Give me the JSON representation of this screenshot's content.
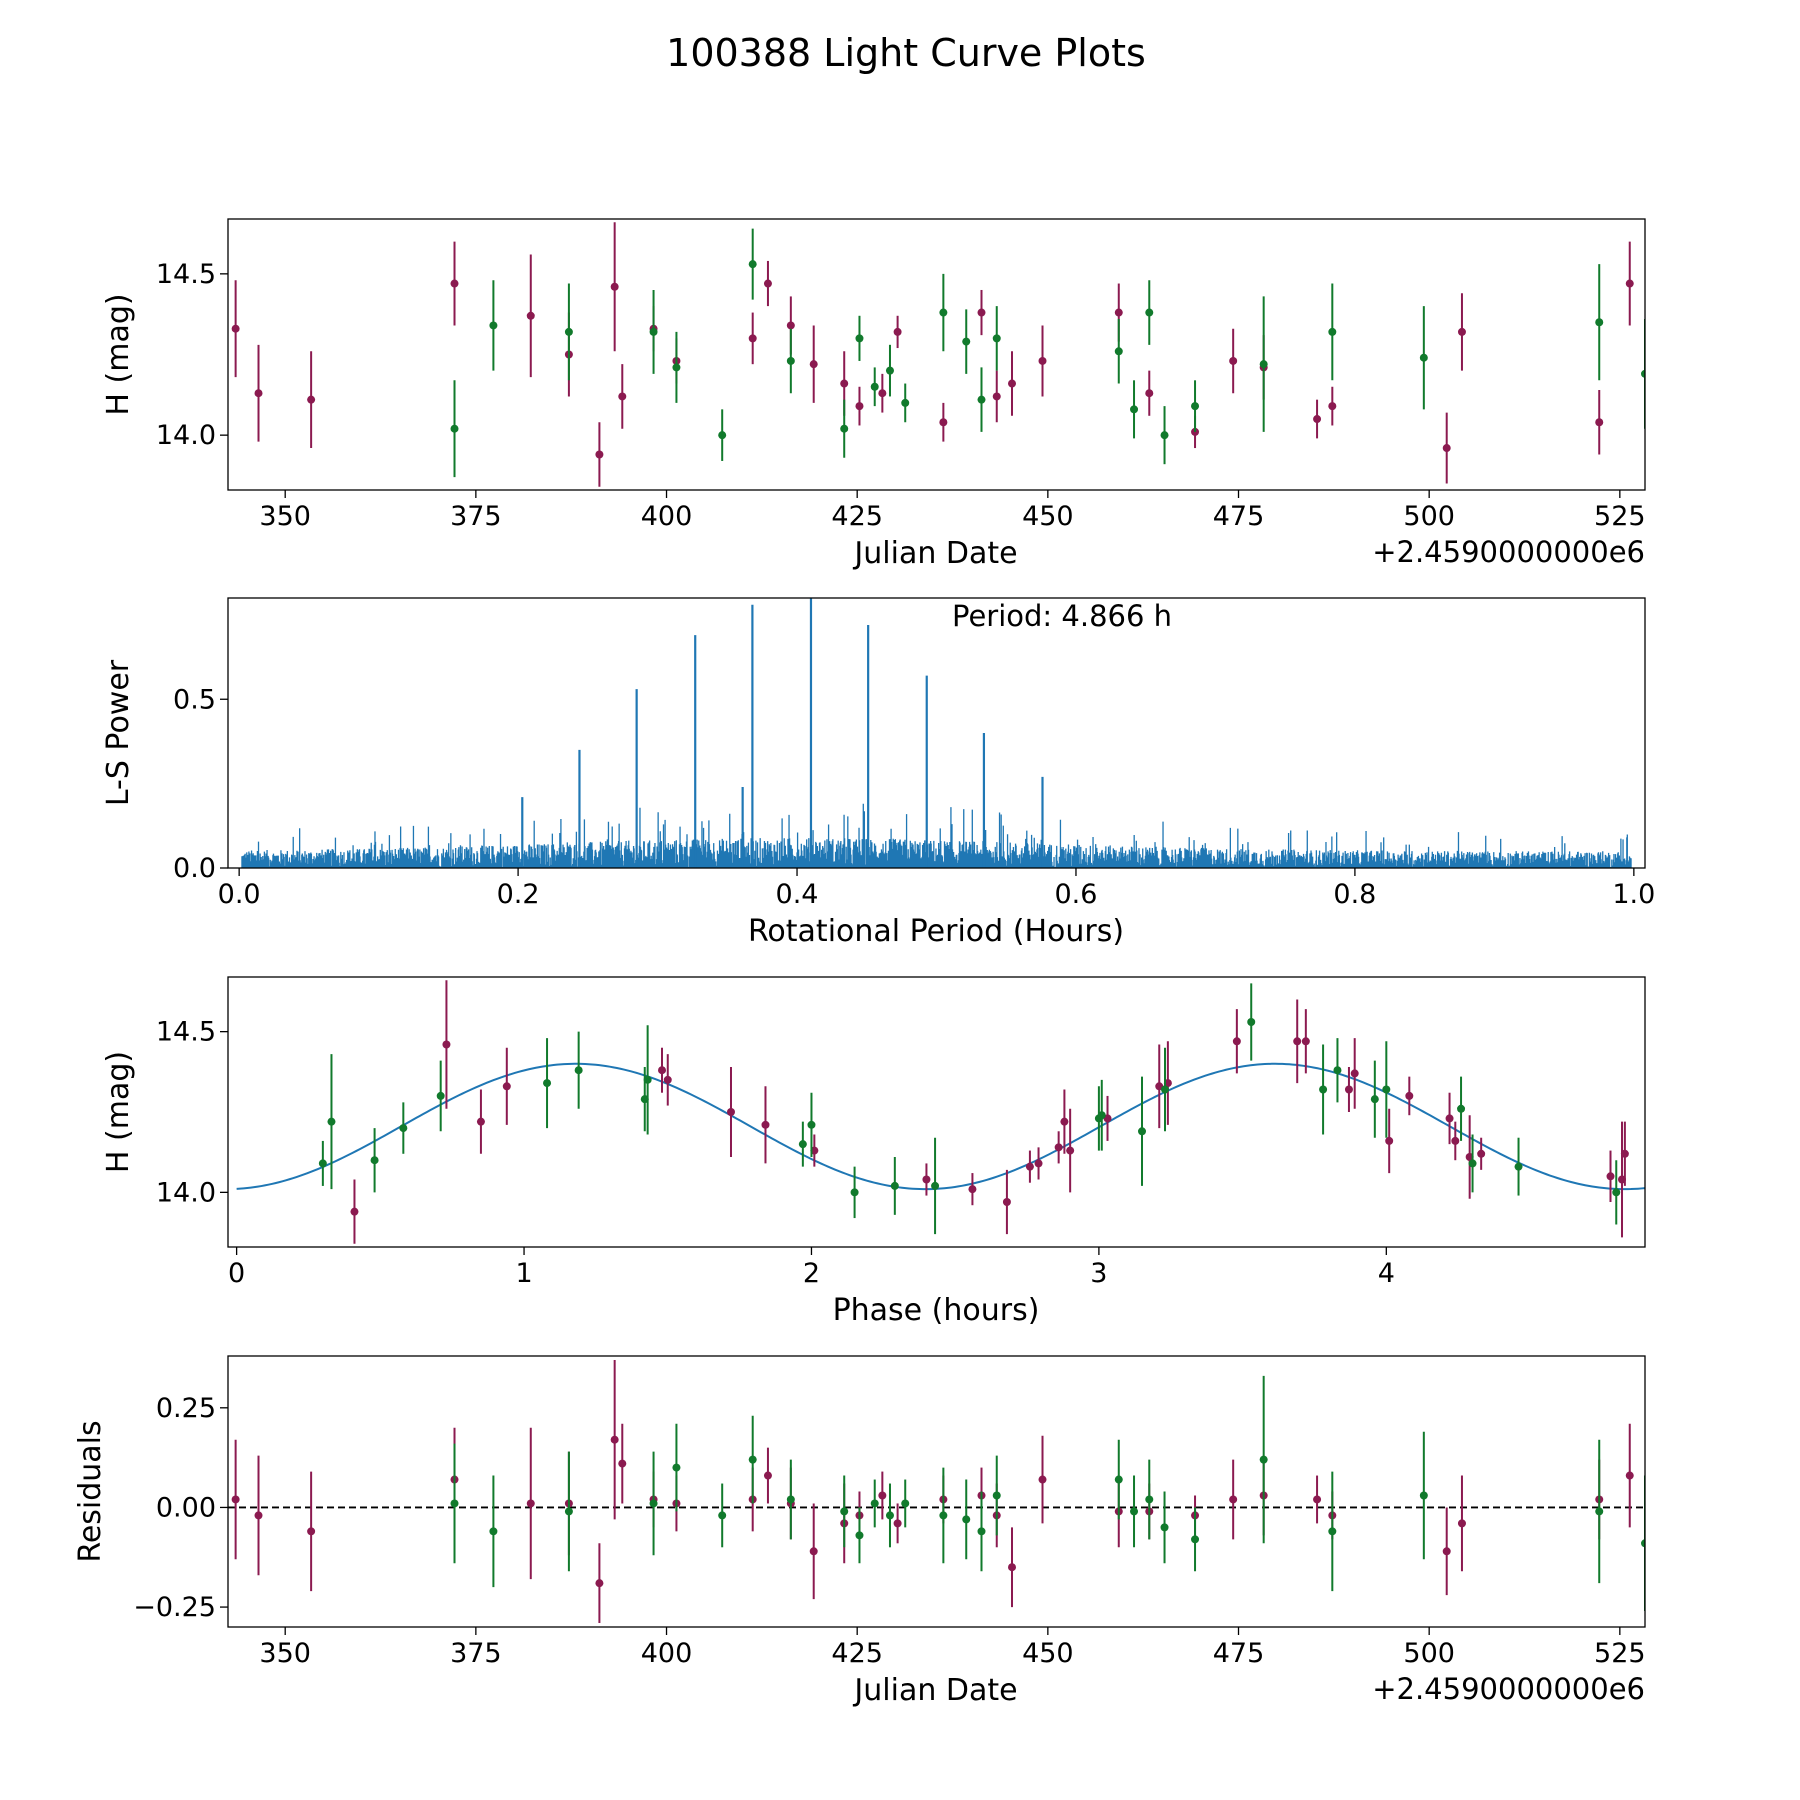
{
  "figure_title": "100388 Light Curve Plots",
  "colors": {
    "red": "#8b1a50",
    "green": "#117a2c",
    "blue": "#1f77b4",
    "black": "#000000"
  },
  "chart_data": [
    {
      "id": "p1",
      "type": "scatter",
      "title": "",
      "xlabel": "Julian Date",
      "ylabel": "H (mag)",
      "x_offset_label": "+2.4590000000e6",
      "xlim": [
        342.5,
        528.3
      ],
      "ylim": [
        13.83,
        14.67
      ],
      "xticks": [
        350,
        375,
        400,
        425,
        450,
        475,
        500,
        525
      ],
      "yticks": [
        14.0,
        14.5
      ],
      "ytick_labels": [
        "14.0",
        "14.5"
      ],
      "series": [
        {
          "name": "red",
          "color": "#8b1a50",
          "x": [
            343.5,
            346.5,
            353.4,
            372.2,
            382.2,
            387.2,
            391.2,
            393.2,
            394.2,
            398.3,
            401.3,
            411.3,
            413.3,
            416.3,
            419.3,
            423.3,
            425.3,
            428.3,
            430.3,
            436.3,
            441.3,
            443.3,
            445.3,
            449.3,
            459.3,
            463.3,
            469.3,
            474.3,
            478.3,
            485.3,
            487.3,
            502.3,
            504.3,
            522.3,
            526.3
          ],
          "y": [
            14.33,
            14.13,
            14.11,
            14.47,
            14.37,
            14.25,
            13.94,
            14.46,
            14.12,
            14.33,
            14.23,
            14.3,
            14.47,
            14.34,
            14.22,
            14.16,
            14.09,
            14.13,
            14.32,
            14.04,
            14.38,
            14.12,
            14.16,
            14.23,
            14.38,
            14.13,
            14.01,
            14.23,
            14.21,
            14.05,
            14.09,
            13.96,
            14.32,
            14.04,
            14.47
          ],
          "err": [
            0.15,
            0.15,
            0.15,
            0.13,
            0.19,
            0.13,
            0.1,
            0.2,
            0.1,
            0.07,
            0.07,
            0.08,
            0.07,
            0.09,
            0.12,
            0.1,
            0.06,
            0.06,
            0.05,
            0.06,
            0.07,
            0.08,
            0.1,
            0.11,
            0.09,
            0.07,
            0.05,
            0.1,
            0.1,
            0.06,
            0.06,
            0.11,
            0.12,
            0.1,
            0.13
          ]
        },
        {
          "name": "green",
          "color": "#117a2c",
          "x": [
            372.2,
            377.3,
            387.2,
            398.3,
            401.3,
            407.3,
            411.3,
            416.3,
            423.3,
            425.3,
            427.3,
            429.3,
            431.3,
            436.3,
            439.3,
            441.3,
            443.3,
            459.3,
            461.3,
            463.3,
            465.3,
            469.3,
            478.3,
            487.3,
            499.3,
            522.3,
            528.3
          ],
          "y": [
            14.02,
            14.34,
            14.32,
            14.32,
            14.21,
            14.0,
            14.53,
            14.23,
            14.02,
            14.3,
            14.15,
            14.2,
            14.1,
            14.38,
            14.29,
            14.11,
            14.3,
            14.26,
            14.08,
            14.38,
            14.0,
            14.09,
            14.22,
            14.32,
            14.24,
            14.35,
            14.19
          ],
          "err": [
            0.15,
            0.14,
            0.15,
            0.13,
            0.11,
            0.08,
            0.11,
            0.1,
            0.09,
            0.07,
            0.06,
            0.08,
            0.06,
            0.12,
            0.1,
            0.1,
            0.1,
            0.1,
            0.09,
            0.1,
            0.09,
            0.08,
            0.21,
            0.15,
            0.16,
            0.18,
            0.17
          ]
        }
      ]
    },
    {
      "id": "p2",
      "type": "line",
      "title": "",
      "xlabel": "Rotational Period (Hours)",
      "ylabel": "L-S Power",
      "annotation": "Period: 4.866 h",
      "xlim": [
        -0.008,
        1.008
      ],
      "ylim": [
        0.0,
        0.8
      ],
      "xticks": [
        0.0,
        0.2,
        0.4,
        0.6,
        0.8,
        1.0
      ],
      "xtick_labels": [
        "0.0",
        "0.2",
        "0.4",
        "0.6",
        "0.8",
        "1.0"
      ],
      "yticks": [
        0.0,
        0.5
      ],
      "ytick_labels": [
        "0.0",
        "0.5"
      ],
      "noise_level": 0.1,
      "peaks": [
        {
          "x": 0.244,
          "y": 0.35
        },
        {
          "x": 0.285,
          "y": 0.53
        },
        {
          "x": 0.327,
          "y": 0.69
        },
        {
          "x": 0.368,
          "y": 0.78
        },
        {
          "x": 0.41,
          "y": 0.8
        },
        {
          "x": 0.451,
          "y": 0.72
        },
        {
          "x": 0.493,
          "y": 0.57
        },
        {
          "x": 0.534,
          "y": 0.4
        },
        {
          "x": 0.576,
          "y": 0.27
        },
        {
          "x": 0.203,
          "y": 0.21
        },
        {
          "x": 0.361,
          "y": 0.24
        }
      ]
    },
    {
      "id": "p3",
      "type": "scatter",
      "title": "",
      "xlabel": "Phase (hours)",
      "ylabel": "H (mag)",
      "xlim": [
        -0.03,
        4.9
      ],
      "ylim": [
        13.83,
        14.67
      ],
      "xticks": [
        0,
        1,
        2,
        3,
        4
      ],
      "yticks": [
        14.0,
        14.5
      ],
      "ytick_labels": [
        "14.0",
        "14.5"
      ],
      "model": {
        "type": "sine",
        "mean": 14.205,
        "amplitude": 0.195,
        "period": 2.433,
        "phase_of_max": 1.18
      },
      "series": [
        {
          "name": "red",
          "color": "#8b1a50",
          "x": [
            0.41,
            0.73,
            0.85,
            0.94,
            1.48,
            1.5,
            1.72,
            1.84,
            2.01,
            2.4,
            2.56,
            2.68,
            2.76,
            2.79,
            2.86,
            2.88,
            2.9,
            3.03,
            3.21,
            3.24,
            3.48,
            3.69,
            3.72,
            3.87,
            3.89,
            4.01,
            4.08,
            4.22,
            4.24,
            4.29,
            4.33,
            4.78,
            4.82,
            4.83
          ],
          "y": [
            13.94,
            14.46,
            14.22,
            14.33,
            14.38,
            14.35,
            14.25,
            14.21,
            14.13,
            14.04,
            14.01,
            13.97,
            14.08,
            14.09,
            14.14,
            14.22,
            14.13,
            14.23,
            14.33,
            14.34,
            14.47,
            14.47,
            14.47,
            14.32,
            14.37,
            14.16,
            14.3,
            14.23,
            14.16,
            14.11,
            14.12,
            14.05,
            14.04,
            14.12
          ],
          "err": [
            0.1,
            0.2,
            0.1,
            0.12,
            0.07,
            0.08,
            0.14,
            0.12,
            0.05,
            0.05,
            0.05,
            0.1,
            0.05,
            0.05,
            0.05,
            0.1,
            0.13,
            0.07,
            0.13,
            0.13,
            0.1,
            0.13,
            0.1,
            0.07,
            0.11,
            0.1,
            0.06,
            0.08,
            0.06,
            0.13,
            0.05,
            0.08,
            0.18,
            0.1
          ]
        },
        {
          "name": "green",
          "color": "#117a2c",
          "x": [
            0.3,
            0.33,
            0.48,
            0.58,
            0.71,
            1.08,
            1.19,
            1.42,
            1.43,
            1.97,
            2.0,
            2.15,
            2.29,
            2.43,
            3.0,
            3.01,
            3.15,
            3.23,
            3.53,
            3.78,
            3.83,
            3.96,
            4.0,
            4.26,
            4.3,
            4.46,
            4.8
          ],
          "y": [
            14.09,
            14.22,
            14.1,
            14.2,
            14.3,
            14.34,
            14.38,
            14.29,
            14.35,
            14.15,
            14.21,
            14.0,
            14.02,
            14.02,
            14.23,
            14.24,
            14.19,
            14.32,
            14.53,
            14.32,
            14.38,
            14.29,
            14.32,
            14.26,
            14.09,
            14.08,
            14.0
          ],
          "err": [
            0.07,
            0.21,
            0.1,
            0.08,
            0.11,
            0.14,
            0.12,
            0.1,
            0.17,
            0.07,
            0.1,
            0.08,
            0.09,
            0.15,
            0.1,
            0.11,
            0.17,
            0.13,
            0.12,
            0.14,
            0.1,
            0.12,
            0.15,
            0.1,
            0.09,
            0.09,
            0.1
          ]
        }
      ]
    },
    {
      "id": "p4",
      "type": "scatter",
      "title": "",
      "xlabel": "Julian Date",
      "ylabel": "Residuals",
      "x_offset_label": "+2.4590000000e6",
      "xlim": [
        342.5,
        528.3
      ],
      "ylim": [
        -0.3,
        0.38
      ],
      "xticks": [
        350,
        375,
        400,
        425,
        450,
        475,
        500,
        525
      ],
      "yticks": [
        0.25,
        0.0,
        -0.25
      ],
      "ytick_labels": [
        "0.25",
        "0.00",
        "−0.25"
      ],
      "zero_line": true,
      "series": [
        {
          "name": "red",
          "color": "#8b1a50",
          "x": [
            343.5,
            346.5,
            353.4,
            372.2,
            382.2,
            387.2,
            391.2,
            393.2,
            394.2,
            398.3,
            401.3,
            411.3,
            413.3,
            416.3,
            419.3,
            423.3,
            425.3,
            428.3,
            430.3,
            436.3,
            441.3,
            443.3,
            445.3,
            449.3,
            459.3,
            463.3,
            469.3,
            474.3,
            478.3,
            485.3,
            487.3,
            502.3,
            504.3,
            522.3,
            526.3
          ],
          "y": [
            0.02,
            -0.02,
            -0.06,
            0.07,
            0.01,
            0.01,
            -0.19,
            0.17,
            0.11,
            0.02,
            0.01,
            0.02,
            0.08,
            0.01,
            -0.11,
            -0.04,
            -0.02,
            0.03,
            -0.04,
            0.02,
            0.03,
            -0.02,
            -0.15,
            0.07,
            -0.01,
            -0.01,
            -0.02,
            0.02,
            0.03,
            0.02,
            -0.02,
            -0.11,
            -0.04,
            0.02,
            0.08
          ],
          "err": [
            0.15,
            0.15,
            0.15,
            0.13,
            0.19,
            0.13,
            0.1,
            0.2,
            0.1,
            0.07,
            0.07,
            0.08,
            0.07,
            0.09,
            0.12,
            0.1,
            0.06,
            0.06,
            0.05,
            0.06,
            0.07,
            0.08,
            0.1,
            0.11,
            0.09,
            0.07,
            0.05,
            0.1,
            0.1,
            0.06,
            0.06,
            0.11,
            0.12,
            0.1,
            0.13
          ]
        },
        {
          "name": "green",
          "color": "#117a2c",
          "x": [
            372.2,
            377.3,
            387.2,
            398.3,
            401.3,
            407.3,
            411.3,
            416.3,
            423.3,
            425.3,
            427.3,
            429.3,
            431.3,
            436.3,
            439.3,
            441.3,
            443.3,
            459.3,
            461.3,
            463.3,
            465.3,
            469.3,
            478.3,
            487.3,
            499.3,
            522.3,
            528.3
          ],
          "y": [
            0.01,
            -0.06,
            -0.01,
            0.01,
            0.1,
            -0.02,
            0.12,
            0.02,
            -0.01,
            -0.07,
            0.01,
            -0.02,
            0.01,
            -0.02,
            -0.03,
            -0.06,
            0.03,
            0.07,
            -0.01,
            0.02,
            -0.05,
            -0.08,
            0.12,
            -0.06,
            0.03,
            -0.01,
            -0.09
          ],
          "err": [
            0.15,
            0.14,
            0.15,
            0.13,
            0.11,
            0.08,
            0.11,
            0.1,
            0.09,
            0.07,
            0.06,
            0.08,
            0.06,
            0.12,
            0.1,
            0.1,
            0.1,
            0.1,
            0.09,
            0.1,
            0.09,
            0.08,
            0.21,
            0.15,
            0.16,
            0.18,
            0.17
          ]
        }
      ]
    }
  ]
}
